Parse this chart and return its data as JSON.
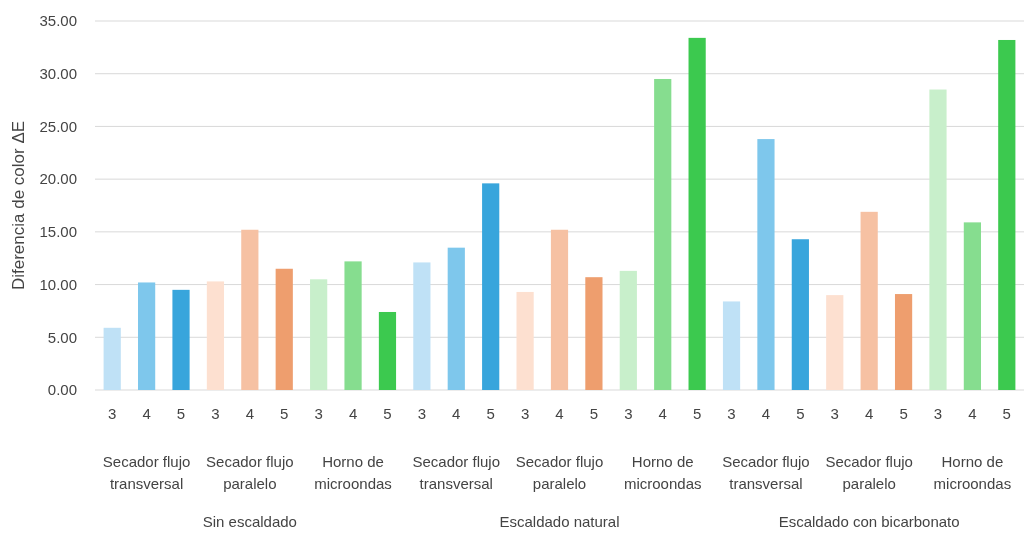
{
  "chart_data": {
    "type": "bar",
    "ylabel": "Diferencia de color ΔE",
    "categories": [
      "3",
      "4",
      "5",
      "3",
      "4",
      "5",
      "3",
      "4",
      "5",
      "3",
      "4",
      "5",
      "3",
      "4",
      "5",
      "3",
      "4",
      "5",
      "3",
      "4",
      "5",
      "3",
      "4",
      "5",
      "3",
      "4",
      "5"
    ],
    "values": [
      5.9,
      10.2,
      9.5,
      10.3,
      15.2,
      11.5,
      10.5,
      12.2,
      7.4,
      12.1,
      13.5,
      19.6,
      9.3,
      15.2,
      10.7,
      11.3,
      29.5,
      33.4,
      8.4,
      23.8,
      14.3,
      9.0,
      16.9,
      9.1,
      28.5,
      15.9,
      33.2
    ],
    "colors": [
      "#bfe1f6",
      "#7ec7ec",
      "#38a5dc",
      "#fde0d0",
      "#f6c1a3",
      "#ee9e6e",
      "#c8efcb",
      "#86dd8f",
      "#3cc94f",
      "#bfe1f6",
      "#7ec7ec",
      "#38a5dc",
      "#fde0d0",
      "#f6c1a3",
      "#ee9e6e",
      "#c8efcb",
      "#86dd8f",
      "#3cc94f",
      "#bfe1f6",
      "#7ec7ec",
      "#38a5dc",
      "#fde0d0",
      "#f6c1a3",
      "#ee9e6e",
      "#c8efcb",
      "#86dd8f",
      "#3cc94f"
    ],
    "annotations": [
      "Secador flujo transversal",
      "Secador flujo paralelo",
      "Horno de microondas",
      "Secador flujo transversal",
      "Secador flujo paralelo",
      "Horno de microondas",
      "Secador flujo transversal",
      "Secador flujo paralelo",
      "Horno de microondas",
      "Sin escaldado",
      "Escaldado natural",
      "Escaldado con bicarbonato"
    ],
    "ylim": [
      0,
      35
    ],
    "yticks": [
      {
        "value": 0,
        "label": "0.00"
      },
      {
        "value": 5,
        "label": "5.00"
      },
      {
        "value": 10,
        "label": "10.00"
      },
      {
        "value": 15,
        "label": "15.00"
      },
      {
        "value": 20,
        "label": "20.00"
      },
      {
        "value": 25,
        "label": "25.00"
      },
      {
        "value": 30,
        "label": "30.00"
      },
      {
        "value": 35,
        "label": "35.00"
      }
    ],
    "grid": "y"
  }
}
